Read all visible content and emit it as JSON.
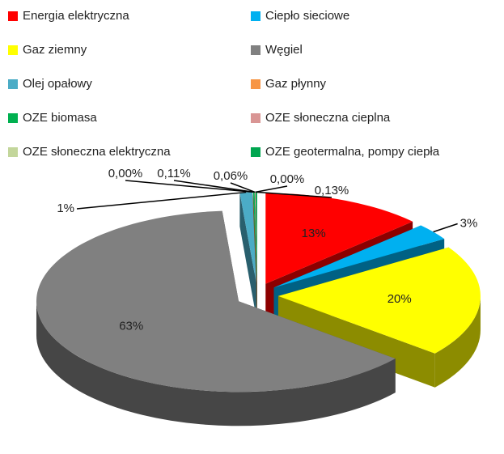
{
  "chart_data": {
    "type": "pie3d",
    "categories": [
      "Energia elektryczna",
      "Ciepło sieciowe",
      "Gaz ziemny",
      "Węgiel",
      "Olej opałowy",
      "Gaz płynny",
      "OZE biomasa",
      "OZE słoneczna cieplna",
      "OZE słoneczna elektryczna",
      "OZE geotermalna, pompy ciepła"
    ],
    "colors": [
      "#ff0000",
      "#00b0f0",
      "#ffff00",
      "#808080",
      "#4bacc6",
      "#f79646",
      "#00b050",
      "#d99594",
      "#c3d69b",
      "#00a650"
    ],
    "values": [
      13,
      3,
      20,
      63,
      1,
      0,
      0.11,
      0.06,
      0,
      0.13
    ],
    "value_labels": [
      "13%",
      "3%",
      "20%",
      "63%",
      "1%",
      "0,00%",
      "0,11%",
      "0,06%",
      "0,00%",
      "0,13%"
    ],
    "legend": "top"
  }
}
